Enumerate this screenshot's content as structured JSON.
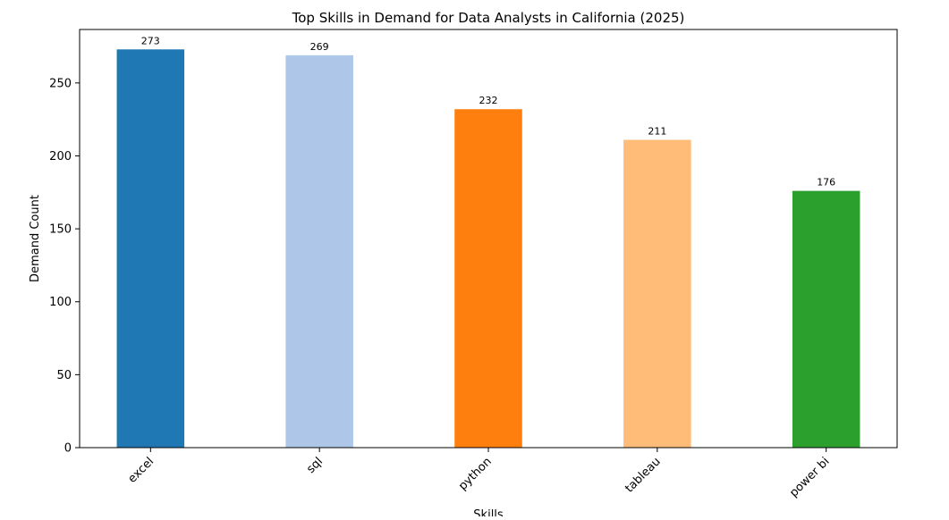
{
  "chart_data": {
    "type": "bar",
    "title": "Top Skills in Demand for Data Analysts in California (2025)",
    "xlabel": "Skills",
    "ylabel": "Demand Count",
    "categories": [
      "excel",
      "sql",
      "python",
      "tableau",
      "power bi"
    ],
    "values": [
      273,
      269,
      232,
      211,
      176
    ],
    "colors": [
      "#1f77b4",
      "#aec7e8",
      "#ff7f0e",
      "#ffbb78",
      "#2ca02c"
    ],
    "ylim": [
      0,
      286.65
    ],
    "yticks": [
      0,
      50,
      100,
      150,
      200,
      250
    ],
    "grid": false,
    "x_tick_rotation": 45,
    "data_labels": true
  }
}
